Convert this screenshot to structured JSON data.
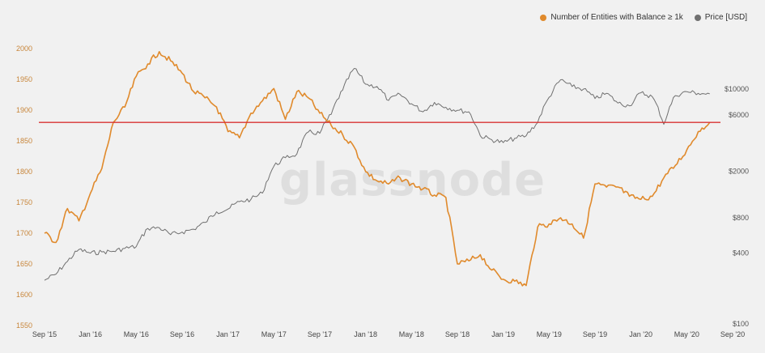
{
  "chart_data": {
    "type": "line",
    "watermark": "glassnode",
    "legend": [
      {
        "name": "Number of Entities with Balance ≥ 1k",
        "color": "#e08a2c"
      },
      {
        "name": "Price [USD]",
        "color": "#707070"
      }
    ],
    "x_ticks": [
      "Sep '15",
      "Jan '16",
      "May '16",
      "Sep '16",
      "Jan '17",
      "May '17",
      "Sep '17",
      "Jan '18",
      "May '18",
      "Sep '18",
      "Jan '19",
      "May '19",
      "Sep '19",
      "Jan '20",
      "May '20",
      "Sep '20"
    ],
    "y_left": {
      "ticks": [
        1550,
        1600,
        1650,
        1700,
        1750,
        1800,
        1850,
        1900,
        1950,
        2000
      ],
      "ylim": [
        1550,
        2000
      ]
    },
    "y_right": {
      "scale": "log",
      "ticks": [
        100,
        400,
        800,
        2000,
        6000,
        10000
      ],
      "tick_labels": [
        "$100",
        "$400",
        "$800",
        "$2000",
        "$6000",
        "$10000"
      ]
    },
    "reference_line": {
      "y": 1880,
      "color": "#d93333"
    },
    "series": [
      {
        "name": "Number of Entities with Balance ≥ 1k",
        "axis": "left",
        "color": "#e08a2c",
        "points": [
          [
            "Sep '15",
            1700
          ],
          [
            "Oct '15",
            1685
          ],
          [
            "Nov '15",
            1740
          ],
          [
            "Dec '15",
            1720
          ],
          [
            "Jan '16",
            1765
          ],
          [
            "Feb '16",
            1805
          ],
          [
            "Mar '16",
            1880
          ],
          [
            "Apr '16",
            1905
          ],
          [
            "May '16",
            1955
          ],
          [
            "Jun '16",
            1975
          ],
          [
            "Jul '16",
            1995
          ],
          [
            "Aug '16",
            1980
          ],
          [
            "Sep '16",
            1960
          ],
          [
            "Oct '16",
            1930
          ],
          [
            "Nov '16",
            1920
          ],
          [
            "Dec '16",
            1905
          ],
          [
            "Jan '17",
            1865
          ],
          [
            "Feb '17",
            1855
          ],
          [
            "Mar '17",
            1895
          ],
          [
            "Apr '17",
            1915
          ],
          [
            "May '17",
            1935
          ],
          [
            "Jun '17",
            1885
          ],
          [
            "Jul '17",
            1930
          ],
          [
            "Aug '17",
            1920
          ],
          [
            "Sep '17",
            1895
          ],
          [
            "Oct '17",
            1875
          ],
          [
            "Nov '17",
            1860
          ],
          [
            "Dec '17",
            1840
          ],
          [
            "Jan '18",
            1800
          ],
          [
            "Feb '18",
            1785
          ],
          [
            "Mar '18",
            1780
          ],
          [
            "Apr '18",
            1790
          ],
          [
            "May '18",
            1780
          ],
          [
            "Jun '18",
            1772
          ],
          [
            "Jul '18",
            1762
          ],
          [
            "Aug '18",
            1758
          ],
          [
            "Sep '18",
            1650
          ],
          [
            "Oct '18",
            1655
          ],
          [
            "Nov '18",
            1665
          ],
          [
            "Dec '18",
            1640
          ],
          [
            "Jan '19",
            1625
          ],
          [
            "Feb '19",
            1622
          ],
          [
            "Mar '19",
            1615
          ],
          [
            "Apr '19",
            1710
          ],
          [
            "May '19",
            1715
          ],
          [
            "Jun '19",
            1725
          ],
          [
            "Jul '19",
            1715
          ],
          [
            "Aug '19",
            1692
          ],
          [
            "Sep '19",
            1780
          ],
          [
            "Oct '19",
            1775
          ],
          [
            "Nov '19",
            1775
          ],
          [
            "Dec '19",
            1760
          ],
          [
            "Jan '20",
            1755
          ],
          [
            "Feb '20",
            1760
          ],
          [
            "Mar '20",
            1790
          ],
          [
            "Apr '20",
            1810
          ],
          [
            "May '20",
            1835
          ],
          [
            "Jun '20",
            1865
          ],
          [
            "Jul '20",
            1880
          ]
        ]
      },
      {
        "name": "Price [USD]",
        "axis": "right",
        "color": "#707070",
        "points": [
          [
            "Sep '15",
            235
          ],
          [
            "Oct '15",
            265
          ],
          [
            "Nov '15",
            340
          ],
          [
            "Dec '15",
            430
          ],
          [
            "Jan '16",
            400
          ],
          [
            "Feb '16",
            410
          ],
          [
            "Mar '16",
            415
          ],
          [
            "Apr '16",
            440
          ],
          [
            "May '16",
            455
          ],
          [
            "Jun '16",
            650
          ],
          [
            "Jul '16",
            660
          ],
          [
            "Aug '16",
            575
          ],
          [
            "Sep '16",
            605
          ],
          [
            "Oct '16",
            640
          ],
          [
            "Nov '16",
            730
          ],
          [
            "Dec '16",
            900
          ],
          [
            "Jan '17",
            950
          ],
          [
            "Feb '17",
            1100
          ],
          [
            "Mar '17",
            1150
          ],
          [
            "Apr '17",
            1300
          ],
          [
            "May '17",
            2200
          ],
          [
            "Jun '17",
            2600
          ],
          [
            "Jul '17",
            2800
          ],
          [
            "Aug '17",
            4300
          ],
          [
            "Sep '17",
            4200
          ],
          [
            "Oct '17",
            6100
          ],
          [
            "Nov '17",
            9800
          ],
          [
            "Dec '17",
            15000
          ],
          [
            "Jan '18",
            11000
          ],
          [
            "Feb '18",
            10500
          ],
          [
            "Mar '18",
            8000
          ],
          [
            "Apr '18",
            9000
          ],
          [
            "May '18",
            7500
          ],
          [
            "Jun '18",
            6400
          ],
          [
            "Jul '18",
            7700
          ],
          [
            "Aug '18",
            7000
          ],
          [
            "Sep '18",
            6600
          ],
          [
            "Oct '18",
            6400
          ],
          [
            "Nov '18",
            4000
          ],
          [
            "Dec '18",
            3700
          ],
          [
            "Jan '19",
            3500
          ],
          [
            "Feb '19",
            3800
          ],
          [
            "Mar '19",
            4000
          ],
          [
            "Apr '19",
            5200
          ],
          [
            "May '19",
            8500
          ],
          [
            "Jun '19",
            12000
          ],
          [
            "Jul '19",
            10500
          ],
          [
            "Aug '19",
            10000
          ],
          [
            "Sep '19",
            8300
          ],
          [
            "Oct '19",
            9200
          ],
          [
            "Nov '19",
            7600
          ],
          [
            "Dec '19",
            7200
          ],
          [
            "Jan '20",
            9300
          ],
          [
            "Feb '20",
            8600
          ],
          [
            "Mar '20",
            5000
          ],
          [
            "Apr '20",
            8800
          ],
          [
            "May '20",
            9500
          ],
          [
            "Jun '20",
            9200
          ],
          [
            "Jul '20",
            9100
          ]
        ]
      }
    ]
  }
}
